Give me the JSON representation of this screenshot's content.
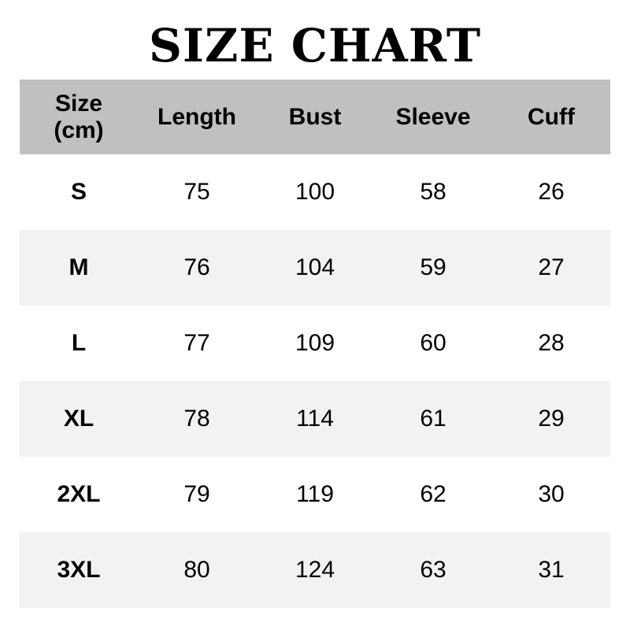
{
  "title": "SIZE CHART",
  "headers": [
    "Size\n(cm)",
    "Length",
    "Bust",
    "Sleeve",
    "Cuff"
  ],
  "header_lines": {
    "size_line1": "Size",
    "size_line2": "(cm)"
  },
  "rows": [
    [
      "S",
      "75",
      "100",
      "58",
      "26"
    ],
    [
      "M",
      "76",
      "104",
      "59",
      "27"
    ],
    [
      "L",
      "77",
      "109",
      "60",
      "28"
    ],
    [
      "XL",
      "78",
      "114",
      "61",
      "29"
    ],
    [
      "2XL",
      "79",
      "119",
      "62",
      "30"
    ],
    [
      "3XL",
      "80",
      "124",
      "63",
      "31"
    ]
  ],
  "colors": {
    "header_bg": "#c0c0c0",
    "alt_row_bg": "#f2f2f2"
  }
}
